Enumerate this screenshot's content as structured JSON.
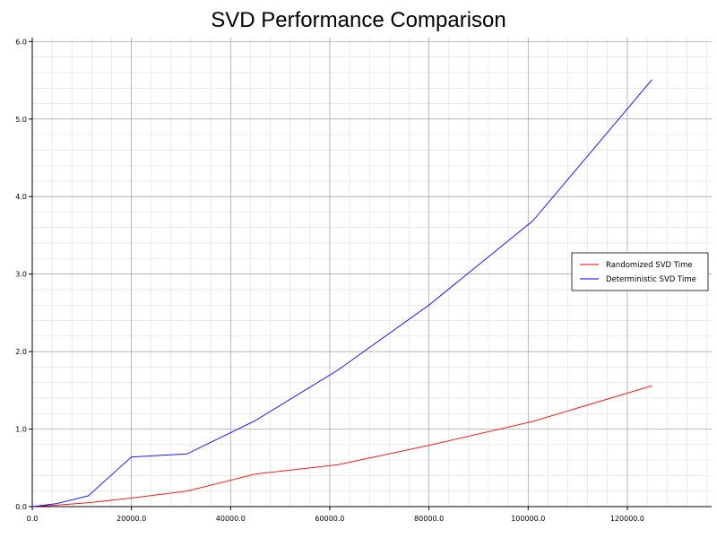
{
  "chart_data": {
    "type": "line",
    "title": "SVD Performance Comparison",
    "xlabel": "",
    "ylabel": "",
    "xlim": [
      0,
      137000
    ],
    "ylim": [
      0,
      6.05
    ],
    "x_ticks": [
      0,
      20000,
      40000,
      60000,
      80000,
      100000,
      120000
    ],
    "x_tick_labels": [
      "0.0",
      "20000.0",
      "40000.0",
      "60000.0",
      "80000.0",
      "100000.0",
      "120000.0"
    ],
    "y_ticks": [
      0,
      1,
      2,
      3,
      4,
      5,
      6
    ],
    "y_tick_labels": [
      "0.0",
      "1.0",
      "2.0",
      "3.0",
      "4.0",
      "5.0",
      "6.0"
    ],
    "grid": true,
    "legend_position": "right",
    "series": [
      {
        "name": "Randomized SVD Time",
        "color": "#ff0000",
        "x": [
          0,
          5000,
          11300,
          20000,
          31200,
          45000,
          61600,
          80000,
          101000,
          125000
        ],
        "y": [
          0.0,
          0.02,
          0.05,
          0.11,
          0.2,
          0.42,
          0.54,
          0.79,
          1.1,
          1.56
        ]
      },
      {
        "name": "Deterministic SVD Time",
        "color": "#0000ff",
        "x": [
          0,
          5000,
          11300,
          20000,
          31200,
          45000,
          61600,
          80000,
          101000,
          125000
        ],
        "y": [
          0.0,
          0.04,
          0.14,
          0.64,
          0.68,
          1.11,
          1.76,
          2.6,
          3.69,
          5.51
        ]
      }
    ]
  }
}
